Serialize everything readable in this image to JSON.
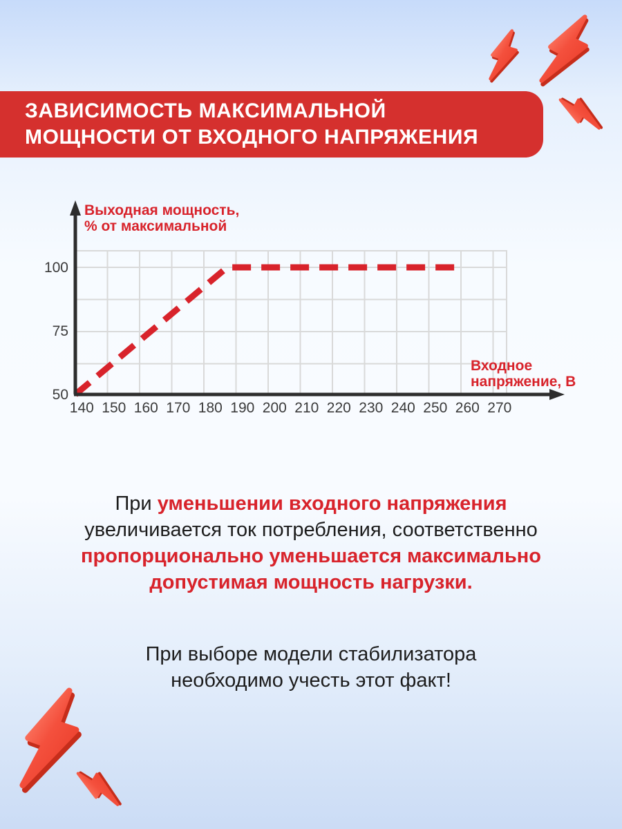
{
  "title": {
    "line1": "ЗАВИСИМОСТЬ МАКСИМАЛЬНОЙ",
    "line2": "МОЩНОСТИ ОТ ВХОДНОГО НАПРЯЖЕНИЯ"
  },
  "chart_data": {
    "type": "line",
    "title": "",
    "xlabel": "Входное напряжение, В",
    "ylabel": "Выходная мощность, % от максимальной",
    "xlabel_lines": [
      "Входное",
      "напряжение, В"
    ],
    "ylabel_lines": [
      "Выходная мощность,",
      "% от максимальной"
    ],
    "x_ticks": [
      140,
      150,
      160,
      170,
      180,
      190,
      200,
      210,
      220,
      230,
      240,
      250,
      260,
      270
    ],
    "y_ticks": [
      50,
      75,
      100
    ],
    "xlim": [
      140,
      272
    ],
    "ylim": [
      50,
      106
    ],
    "grid": true,
    "legend_position": "none",
    "series": [
      {
        "name": "Выходная мощность, % от максимальной",
        "style": "dashed",
        "color": "#d8232b",
        "points": [
          {
            "x": 140,
            "y": 50
          },
          {
            "x": 187,
            "y": 100
          },
          {
            "x": 260,
            "y": 100
          }
        ]
      }
    ]
  },
  "paragraph1": {
    "lines": [
      [
        {
          "text": "При ",
          "style": "dark"
        },
        {
          "text": "уменьшении входного напряжения",
          "style": "red"
        }
      ],
      [
        {
          "text": "увеличивается ток потребления, соответственно",
          "style": "dark"
        }
      ],
      [
        {
          "text": "пропорционально уменьшается максимально",
          "style": "red"
        }
      ],
      [
        {
          "text": "допустимая мощность нагрузки.",
          "style": "red"
        }
      ]
    ]
  },
  "paragraph2": {
    "lines": [
      "При выборе модели стабилизатора",
      "необходимо учесть этот факт!"
    ]
  },
  "icons": {
    "top_right": [
      "lightning-bolt",
      "lightning-bolt",
      "lightning-bolt"
    ],
    "bottom_left": [
      "lightning-bolt",
      "lightning-bolt"
    ]
  },
  "colors": {
    "banner_red": "#d5302e",
    "accent_red": "#d8232b",
    "bolt_red": "#f4503d",
    "axis_dark": "#2d2d2d",
    "grid_gray": "#d9d9d9",
    "text_dark": "#1c1c1c",
    "background_top": "#c7dbfa",
    "background_middle": "#f8fbff",
    "background_bottom": "#cbdcf5"
  }
}
